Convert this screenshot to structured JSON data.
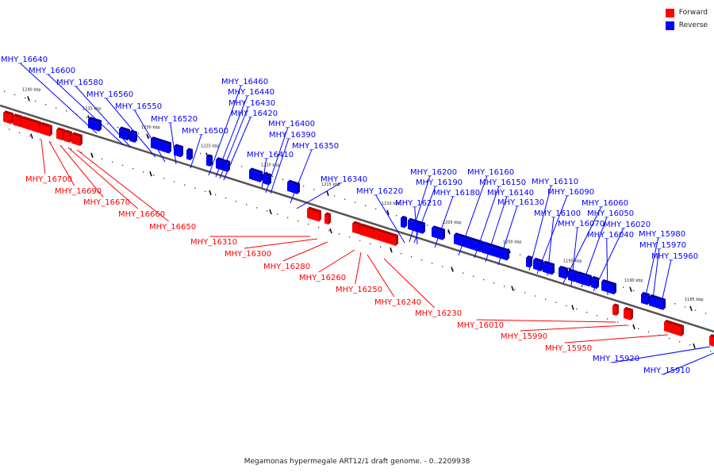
{
  "legend": {
    "forward_label": "Forward",
    "reverse_label": "Reverse",
    "forward_color": "#ff0000",
    "reverse_color": "#0000ff"
  },
  "caption": "Megamonas hypermegale ART12/1 draft genome. - 0..2209938",
  "colors": {
    "forward": "#ff0000",
    "reverse": "#0000ff",
    "backbone": "#555555"
  },
  "scale_labels": [
    "1240 kbp",
    "1235 kbp",
    "1230 kbp",
    "1225 kbp",
    "1220 kbp",
    "1215 kbp",
    "1210 kbp",
    "1205 kbp",
    "1200 kbp",
    "1195 kbp",
    "1190 kbp",
    "1185 kbp"
  ],
  "reverse_genes": [
    "MHY_16640",
    "MHY_16600",
    "MHY_16580",
    "MHY_16560",
    "MHY_16550",
    "MHY_16520",
    "MHY_16500",
    "MHY_16460",
    "MHY_16440",
    "MHY_16430",
    "MHY_16420",
    "MHY_16400",
    "MHY_16390",
    "MHY_16350",
    "MHY_16410",
    "MHY_16340",
    "MHY_16220",
    "MHY_16200",
    "MHY_16190",
    "MHY_16210",
    "MHY_16180",
    "MHY_16160",
    "MHY_16150",
    "MHY_16140",
    "MHY_16130",
    "MHY_16110",
    "MHY_16090",
    "MHY_16100",
    "MHY_16060",
    "MHY_16070",
    "MHY_16050",
    "MHY_16020",
    "MHY_16040",
    "MHY_15980",
    "MHY_15970",
    "MHY_15960",
    "MHY_15920",
    "MHY_15910"
  ],
  "forward_genes": [
    "MHY_16700",
    "MHY_16690",
    "MHY_16670",
    "MHY_16660",
    "MHY_16650",
    "MHY_16310",
    "MHY_16300",
    "MHY_16280",
    "MHY_16260",
    "MHY_16250",
    "MHY_16240",
    "MHY_16230",
    "MHY_16010",
    "MHY_15990",
    "MHY_15950"
  ]
}
